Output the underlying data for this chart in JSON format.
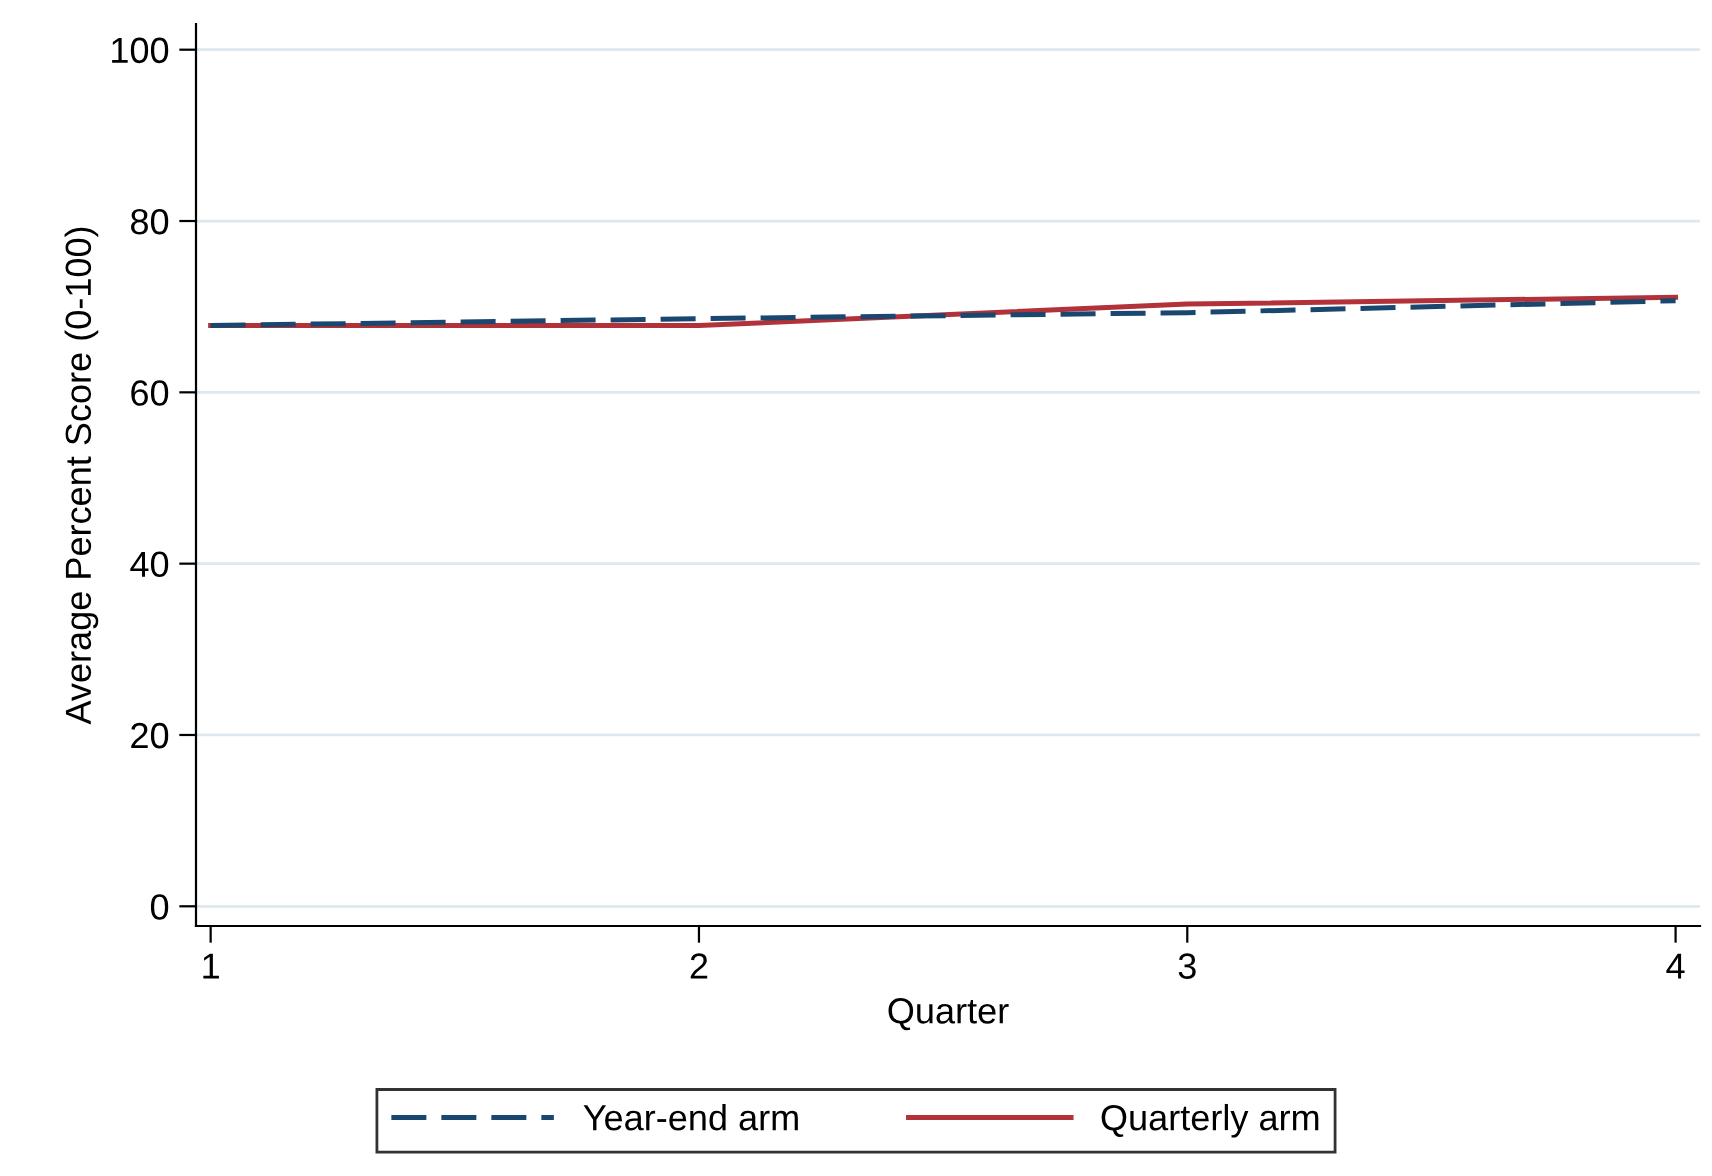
{
  "chart_data": {
    "type": "line",
    "xlabel": "Quarter",
    "ylabel": "Average Percent Score (0-100)",
    "x": [
      1,
      2,
      3,
      4
    ],
    "series": [
      {
        "name": "Year-end arm",
        "color": "#1a476f",
        "line_style": "dashed",
        "values": [
          67.8,
          68.6,
          69.3,
          70.7
        ]
      },
      {
        "name": "Quarterly arm",
        "color": "#b2323a",
        "line_style": "solid",
        "values": [
          67.8,
          67.8,
          70.3,
          71.1
        ]
      }
    ],
    "xlim": [
      0.97,
      4.05
    ],
    "ylim": [
      -2.3,
      103
    ],
    "xticks": [
      1,
      2,
      3,
      4
    ],
    "yticks": [
      0,
      20,
      40,
      60,
      80,
      100
    ],
    "grid": "y",
    "legend": "bottom"
  }
}
